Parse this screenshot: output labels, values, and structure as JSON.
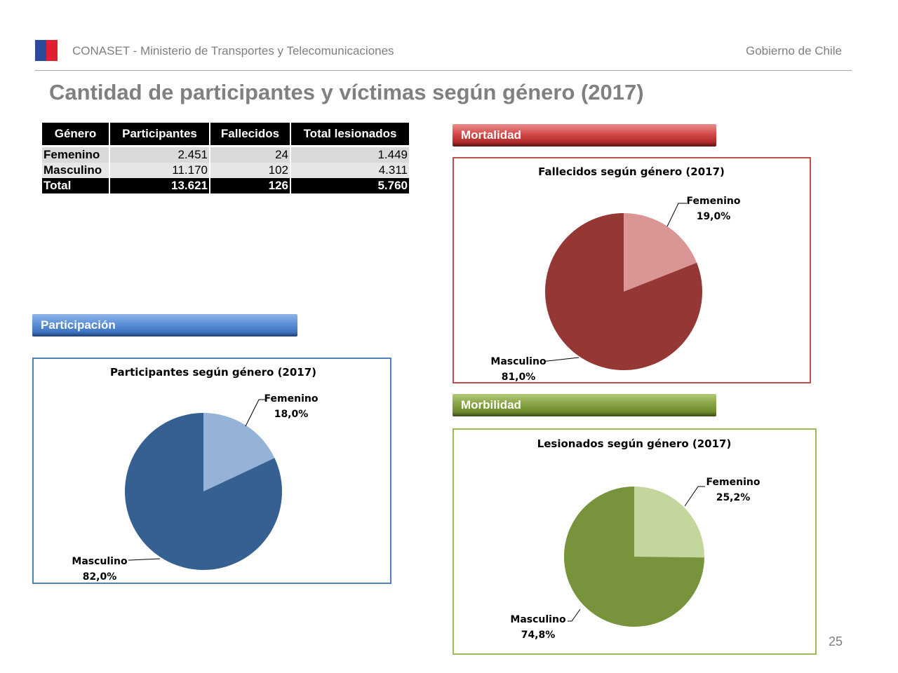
{
  "header": {
    "org": "CONASET - Ministerio de Transportes y Telecomunicaciones",
    "gov": "Gobierno de Chile"
  },
  "title": "Cantidad de participantes y víctimas según género (2017)",
  "table": {
    "headers": [
      "Género",
      "Participantes",
      "Fallecidos",
      "Total lesionados"
    ],
    "rows": [
      [
        "Femenino",
        "2.451",
        "24",
        "1.449"
      ],
      [
        "Masculino",
        "11.170",
        "102",
        "4.311"
      ]
    ],
    "total": [
      "Total",
      "13.621",
      "126",
      "5.760"
    ]
  },
  "sections": {
    "mortalidad": "Mortalidad",
    "morbilidad": "Morbilidad",
    "participacion": "Participación"
  },
  "colors": {
    "mortalidad": {
      "light": "#d99694",
      "dark": "#953735"
    },
    "morbilidad": {
      "light": "#c3d69b",
      "dark": "#77933c"
    },
    "participacion": {
      "light": "#95b3d7",
      "dark": "#366092"
    }
  },
  "page_number": "25",
  "chart_data": [
    {
      "type": "pie",
      "title": "Fallecidos según género (2017)",
      "categories": [
        "Femenino",
        "Masculino"
      ],
      "values": [
        19.0,
        81.0
      ],
      "labels": [
        "19,0%",
        "81,0%"
      ]
    },
    {
      "type": "pie",
      "title": "Lesionados según género (2017)",
      "categories": [
        "Femenino",
        "Masculino"
      ],
      "values": [
        25.2,
        74.8
      ],
      "labels": [
        "25,2%",
        "74,8%"
      ]
    },
    {
      "type": "pie",
      "title": "Participantes según género (2017)",
      "categories": [
        "Femenino",
        "Masculino"
      ],
      "values": [
        18.0,
        82.0
      ],
      "labels": [
        "18,0%",
        "82,0%"
      ]
    }
  ]
}
